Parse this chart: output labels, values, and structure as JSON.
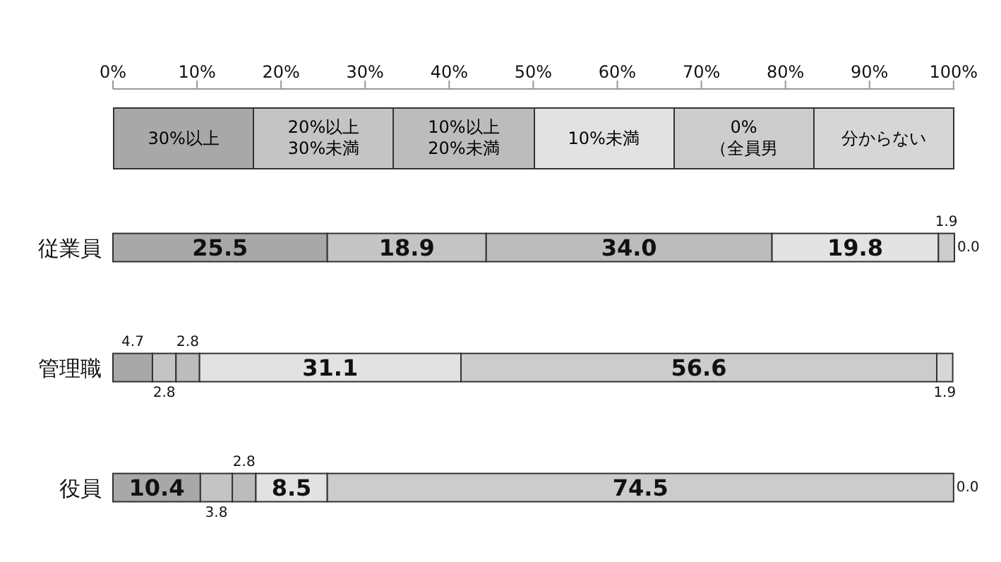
{
  "chart_data": {
    "type": "bar",
    "orientation": "horizontal",
    "stacked": true,
    "categories": [
      "従業員",
      "管理職",
      "役員"
    ],
    "series": [
      {
        "name": "30%以上",
        "color": "#a8a8a8",
        "values": [
          25.5,
          4.7,
          10.4
        ],
        "value_labels": [
          "25.5",
          "4.7",
          "10.4"
        ]
      },
      {
        "name": "20%以上\n30%未満",
        "color": "#c4c4c4",
        "values": [
          18.9,
          2.8,
          3.8
        ],
        "value_labels": [
          "18.9",
          "2.8",
          "3.8"
        ]
      },
      {
        "name": "10%以上\n20%未満",
        "color": "#bcbcbc",
        "values": [
          34.0,
          2.8,
          2.8
        ],
        "value_labels": [
          "34.0",
          "2.8",
          "2.8"
        ]
      },
      {
        "name": "10%未満",
        "color": "#e2e2e2",
        "values": [
          19.8,
          31.1,
          8.5
        ],
        "value_labels": [
          "19.8",
          "31.1",
          "8.5"
        ]
      },
      {
        "name": "0%\n（全員男",
        "color": "#cccccc",
        "values": [
          1.9,
          56.6,
          74.5
        ],
        "value_labels": [
          "1.9",
          "56.6",
          "74.5"
        ]
      },
      {
        "name": "分からない",
        "color": "#d6d6d6",
        "values": [
          0.0,
          1.9,
          0.0
        ],
        "value_labels": [
          "0.0",
          "1.9",
          "0.0"
        ]
      }
    ],
    "xlim": [
      0,
      100
    ],
    "xticks": [
      {
        "value": 0,
        "label": "0%"
      },
      {
        "value": 10,
        "label": "10%"
      },
      {
        "value": 20,
        "label": "20%"
      },
      {
        "value": 30,
        "label": "30%"
      },
      {
        "value": 40,
        "label": "40%"
      },
      {
        "value": 50,
        "label": "50%"
      },
      {
        "value": 60,
        "label": "60%"
      },
      {
        "value": 70,
        "label": "70%"
      },
      {
        "value": 80,
        "label": "80%"
      },
      {
        "value": 90,
        "label": "90%"
      },
      {
        "value": 100,
        "label": "100%"
      }
    ],
    "legend": "top",
    "grid": false
  }
}
